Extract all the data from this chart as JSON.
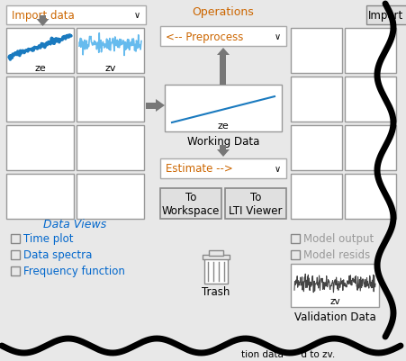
{
  "bg_color": "#e8e8e8",
  "white": "#ffffff",
  "border_color": "#999999",
  "text_dark": "#000000",
  "text_blue": "#0066cc",
  "text_orange": "#cc6600",
  "arrow_color": "#666666",
  "signal_blue": "#1a7abf",
  "signal_light_blue": "#66bbee",
  "signal_validation": "#333333",
  "title_text": "Operations",
  "import_dropdown": "Import data",
  "import_btn": "Import",
  "preprocess_dropdown": "<-- Preprocess",
  "estimate_dropdown": "Estimate -->",
  "workspace_btn": "To\nWorkspace",
  "lti_btn": "To\nLTI Viewer",
  "working_data_label": "Working Data",
  "working_data_sublabel": "ze",
  "trash_label": "Trash",
  "validation_label": "Validation Data",
  "validation_sublabel": "zv",
  "data_views_label": "Data Views",
  "time_plot": "Time plot",
  "data_spectra": "Data spectra",
  "freq_function": "Frequency function",
  "model_output": "Model output",
  "model_resids": "Model resids",
  "cell_ze_label": "ze",
  "cell_zv_label": "zv",
  "status_text": "tion data      d to zv."
}
